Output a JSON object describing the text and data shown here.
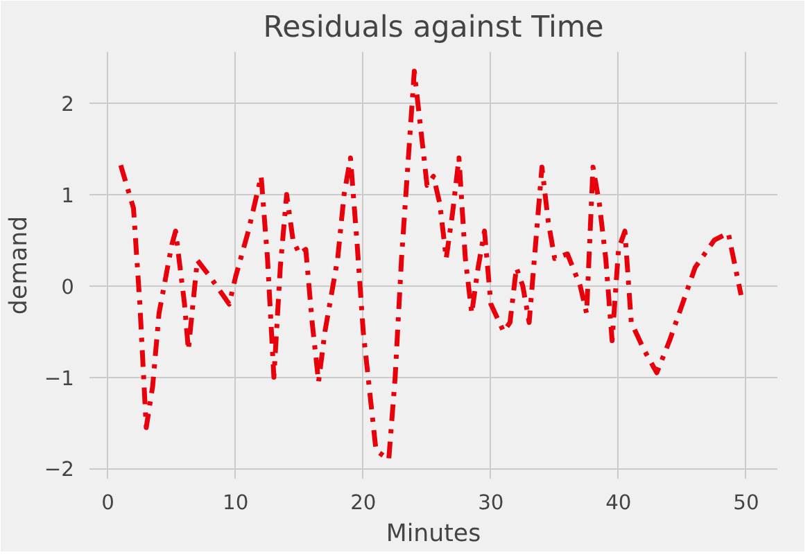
{
  "chart_data": {
    "type": "line",
    "title": "Residuals against Time",
    "xlabel": "Minutes",
    "ylabel": "demand",
    "x": [
      1,
      2,
      2.5,
      3,
      3.5,
      4,
      5,
      5.3,
      6,
      6.3,
      7,
      8,
      9,
      9.5,
      10,
      11,
      12,
      12.5,
      13,
      13.5,
      14,
      14.5,
      15,
      15.5,
      16,
      16.5,
      17,
      18,
      18.5,
      19,
      19.5,
      20,
      21,
      22,
      22.5,
      23,
      24,
      25,
      25.5,
      26,
      26.5,
      27,
      27.5,
      28,
      28.5,
      29,
      29.5,
      30,
      31,
      31.5,
      32,
      32.5,
      33,
      34,
      34.5,
      35,
      36,
      37,
      37.5,
      38,
      38.5,
      39,
      39.5,
      40,
      40.5,
      41,
      42,
      43,
      44,
      44.5,
      45,
      46,
      47,
      47.5,
      48.6,
      49.6
    ],
    "series": [
      {
        "color": "#e8000b",
        "values": [
          1.32,
          0.85,
          -0.2,
          -1.55,
          -1.1,
          -0.3,
          0.45,
          0.6,
          -0.2,
          -0.7,
          0.28,
          0.1,
          -0.1,
          -0.2,
          0.1,
          0.6,
          1.2,
          0.3,
          -1.0,
          0.2,
          1.0,
          0.5,
          0.35,
          0.4,
          -0.4,
          -1.05,
          -0.5,
          0.3,
          1.0,
          1.4,
          0.5,
          -0.5,
          -1.8,
          -1.9,
          -1.0,
          0.3,
          2.35,
          1.1,
          1.2,
          0.9,
          0.3,
          0.8,
          1.4,
          0.3,
          -0.3,
          0.2,
          0.6,
          -0.2,
          -0.5,
          -0.4,
          0.2,
          0.0,
          -0.4,
          1.3,
          0.7,
          0.3,
          0.35,
          0.0,
          -0.3,
          1.3,
          0.9,
          0.3,
          -0.6,
          0.4,
          0.6,
          -0.4,
          -0.7,
          -0.95,
          -0.6,
          -0.4,
          -0.2,
          0.2,
          0.4,
          0.5,
          0.58,
          -0.1
        ]
      }
    ],
    "xlim": [
      -1.45,
      52.45
    ],
    "ylim": [
      -2.11,
      2.56
    ],
    "xticks": [
      0,
      10,
      20,
      30,
      40,
      50
    ],
    "yticks": [
      -2,
      -1,
      0,
      1,
      2
    ],
    "grid": true,
    "line_style": "dashdot",
    "marker": "none"
  }
}
